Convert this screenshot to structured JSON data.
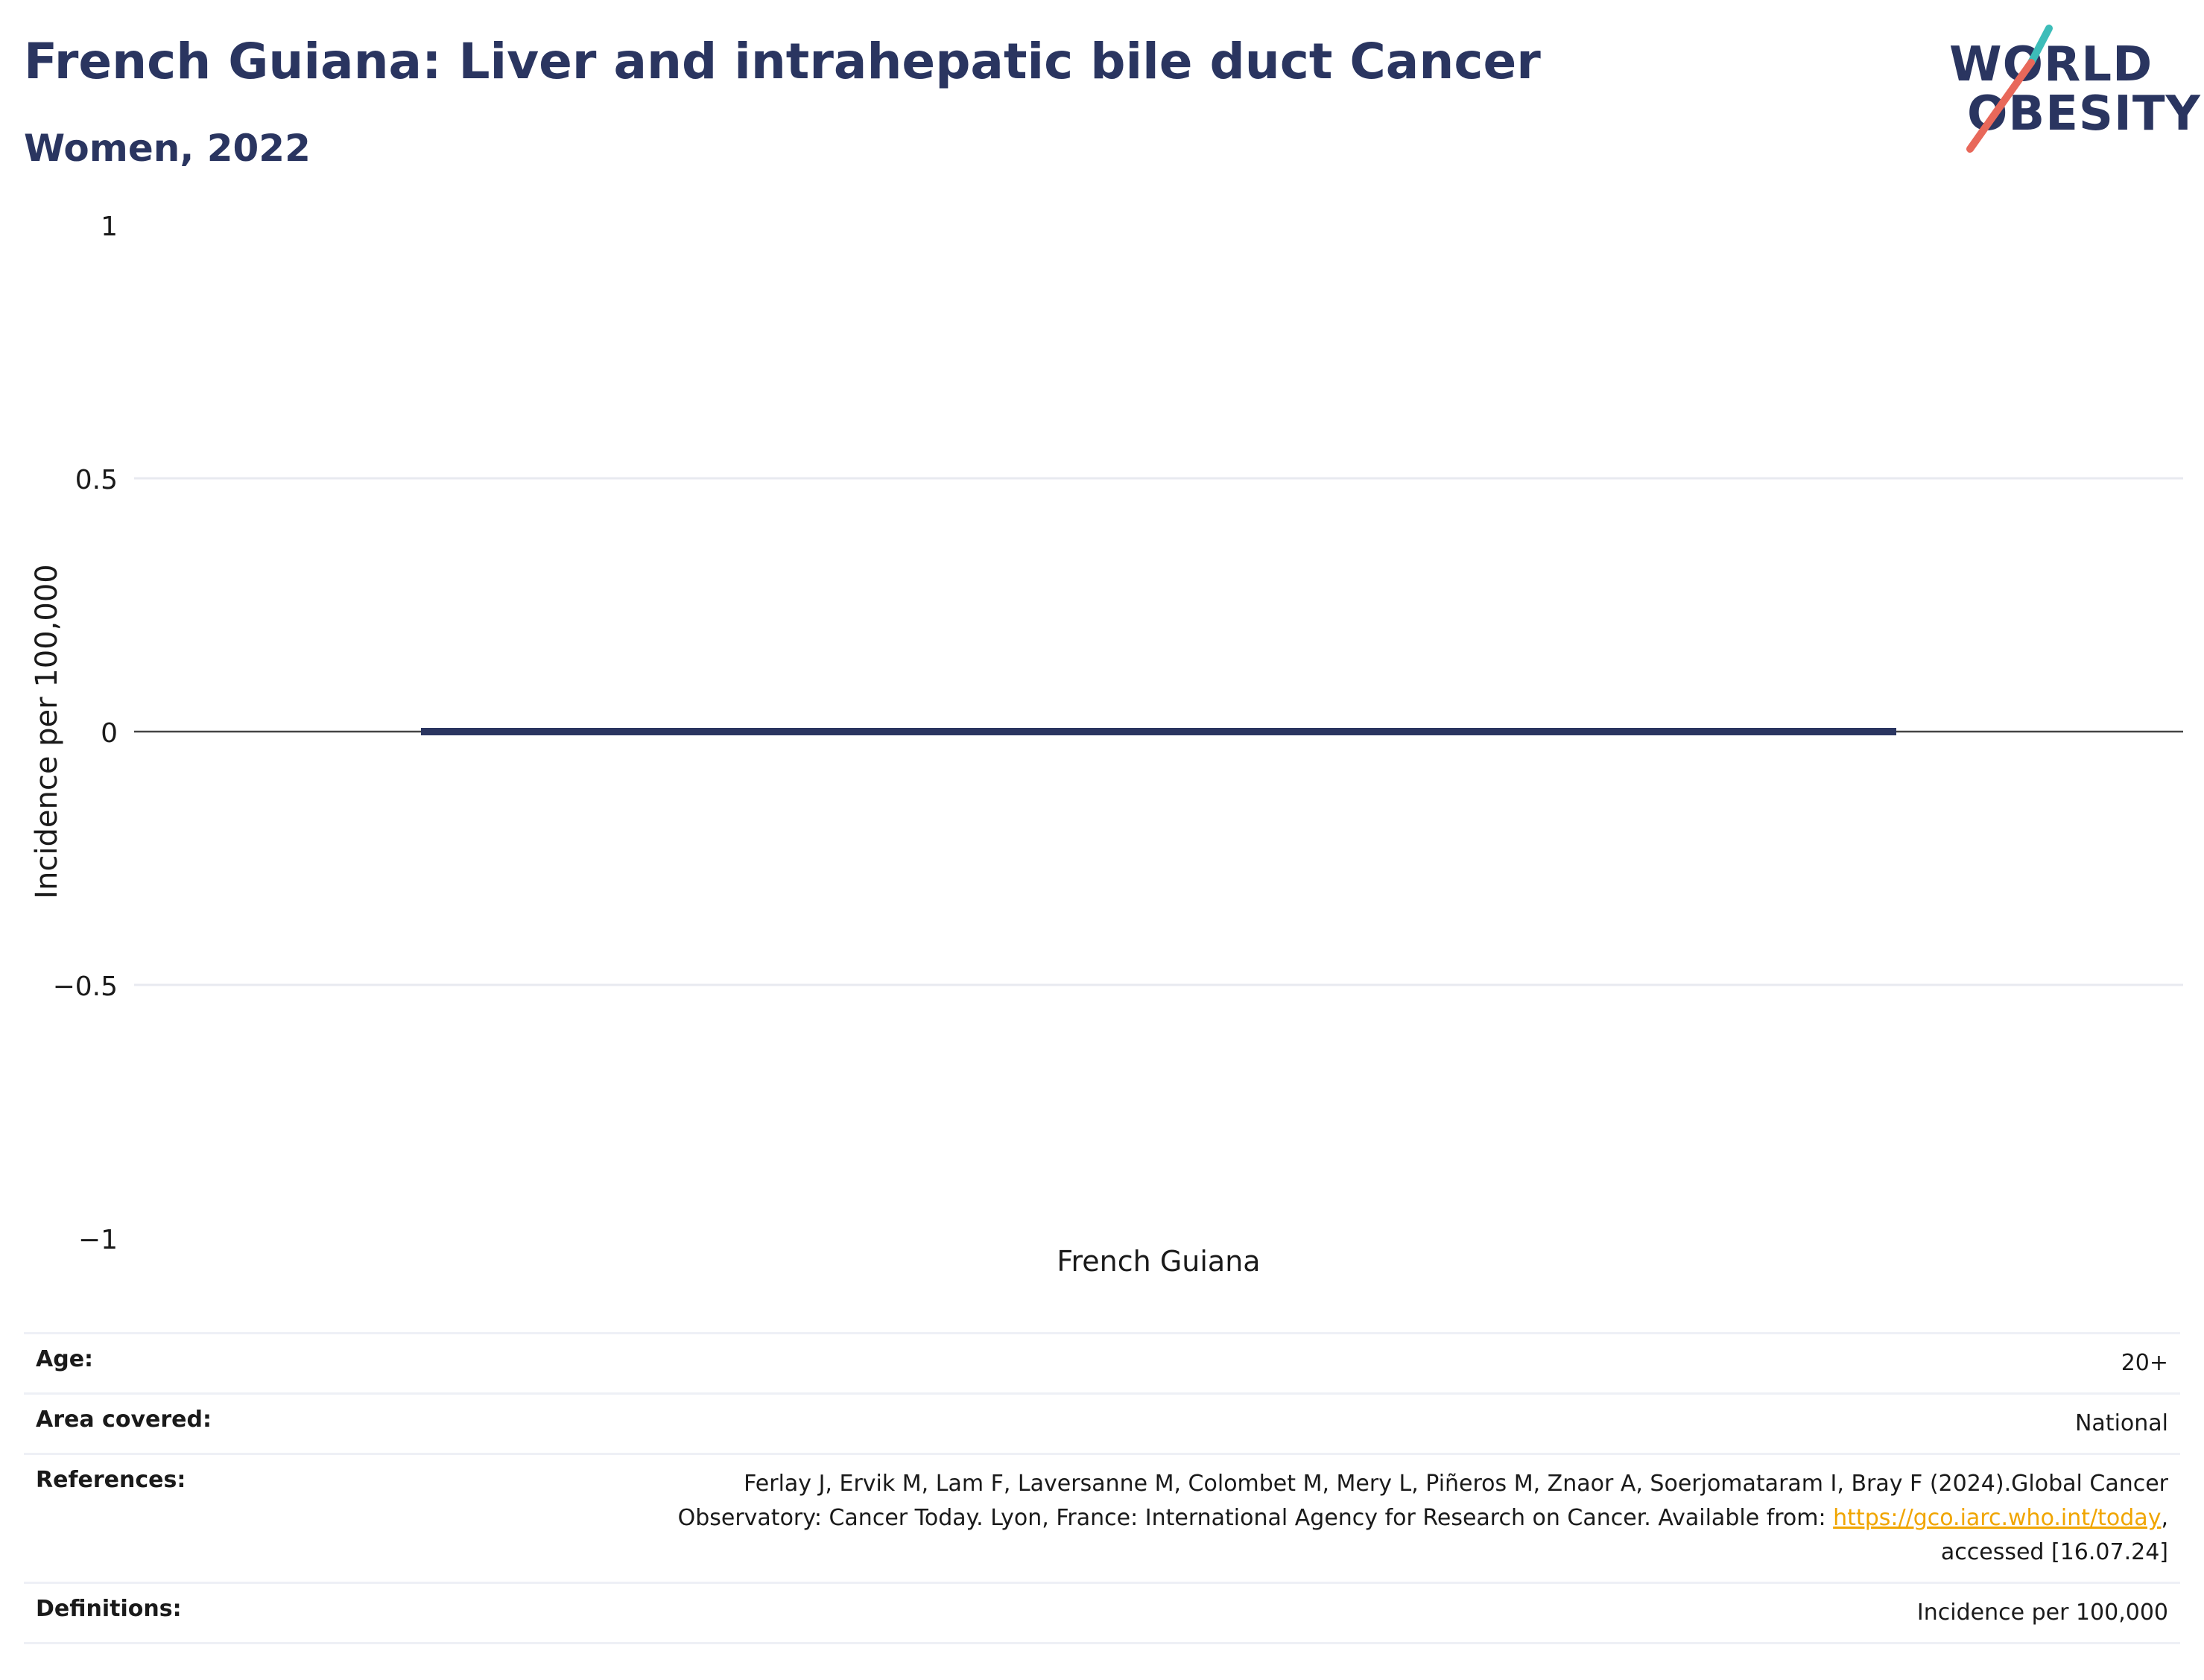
{
  "header": {
    "title": "French Guiana: Liver and intrahepatic bile duct Cancer",
    "subtitle": "Women, 2022"
  },
  "logo": {
    "line1": "WORLD",
    "line2": "OBESITY",
    "accent_teal": "#3dbdb9",
    "accent_coral": "#e8685a"
  },
  "chart_data": {
    "type": "bar",
    "title": "French Guiana: Liver and intrahepatic bile duct Cancer",
    "subtitle": "Women, 2022",
    "categories": [
      "French Guiana"
    ],
    "values": [
      0
    ],
    "ylabel": "Incidence per 100,000",
    "xlabel": "",
    "ylim": [
      -1,
      1
    ],
    "yticks": [
      1,
      0.5,
      0,
      -0.5,
      -1
    ],
    "ytick_labels": [
      "1",
      "0.5",
      "0",
      "−0.5",
      "−1"
    ],
    "grid": true,
    "bar_color": "#2a3560"
  },
  "info": {
    "age_label": "Age:",
    "age_value": "20+",
    "area_label": "Area covered:",
    "area_value": "National",
    "references_label": "References:",
    "references_line1": "Ferlay J, Ervik M, Lam F, Laversanne M, Colombet M, Mery L, Piñeros M, Znaor A, Soerjomataram I, Bray F (2024).Global Cancer",
    "references_line2_pre": "Observatory: Cancer Today. Lyon, France: International Agency for Research on Cancer. Available from: ",
    "references_link": "https://gco.iarc.who.int/today",
    "references_line2_post": ",",
    "references_line3": "accessed [16.07.24]",
    "definitions_label": "Definitions:",
    "definitions_value": "Incidence per 100,000"
  }
}
